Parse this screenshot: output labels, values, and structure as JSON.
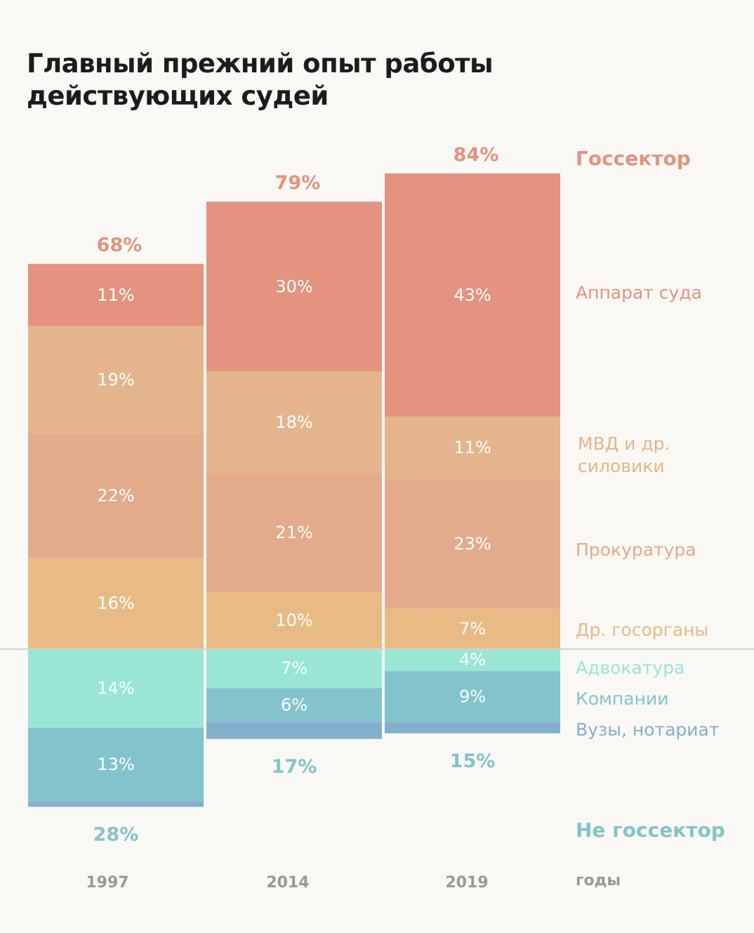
{
  "title_lines": [
    "Главный прежний опыт работы",
    "действующих судей"
  ],
  "chart_data": {
    "type": "bar",
    "stacked": "diverging",
    "title": "Главный прежний опыт работы действующих судей",
    "xlabel": "годы",
    "categories": [
      "1997",
      "2014",
      "2019"
    ],
    "groups": {
      "state": {
        "name": "Госсектор",
        "totals": [
          68,
          79,
          84
        ],
        "color": "#e3937f"
      },
      "nonstate": {
        "name": "Не госсектор",
        "totals": [
          28,
          17,
          15
        ],
        "color": "#83c4cc"
      }
    },
    "series_above": [
      {
        "name": "Аппарат суда",
        "values": [
          11,
          30,
          43
        ],
        "labels": [
          "11%",
          "30%",
          "43%"
        ],
        "color": "#e3937f"
      },
      {
        "name": "МВД и др. силовики",
        "name_lines": [
          "МВД и др.",
          "силовики"
        ],
        "values": [
          19,
          18,
          11
        ],
        "labels": [
          "19%",
          "18%",
          "11%"
        ],
        "color": "#e4b58c"
      },
      {
        "name": "Прокуратура",
        "values": [
          22,
          21,
          23
        ],
        "labels": [
          "22%",
          "21%",
          "23%"
        ],
        "color": "#e4aa8c"
      },
      {
        "name": "Др. госорганы",
        "values": [
          16,
          10,
          7
        ],
        "labels": [
          "16%",
          "10%",
          "7%"
        ],
        "color": "#e8bb85"
      }
    ],
    "series_below": [
      {
        "name": "Адвокатура",
        "values": [
          14,
          7,
          4
        ],
        "labels": [
          "14%",
          "7%",
          "4%"
        ],
        "color": "#99e6d5"
      },
      {
        "name": "Компании",
        "values": [
          13,
          6,
          9
        ],
        "labels": [
          "13%",
          "6%",
          "9%"
        ],
        "color": "#83c4cc"
      },
      {
        "name": "Вузы, нотариат",
        "values": [
          1,
          3,
          2
        ],
        "labels": [
          "",
          "",
          ""
        ],
        "color": "#84afcd"
      }
    ],
    "total_labels_above": [
      "68%",
      "79%",
      "84%"
    ],
    "total_labels_below": [
      "28%",
      "17%",
      "15%"
    ],
    "baseline_color": "#d4d2cb",
    "year_color": "#999999"
  }
}
